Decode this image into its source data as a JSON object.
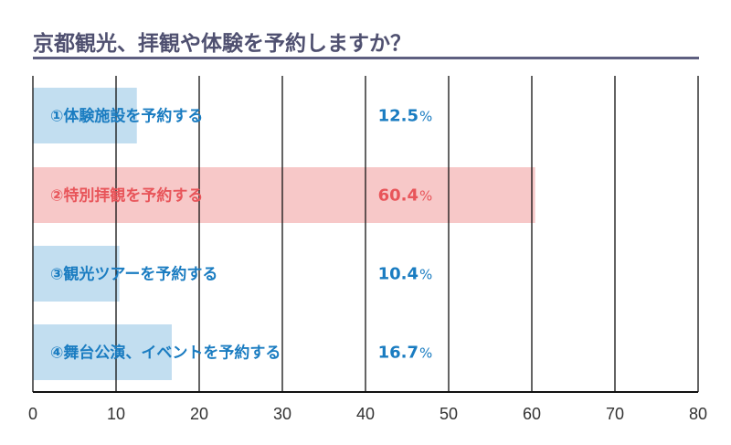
{
  "chart_data": {
    "type": "bar",
    "orientation": "horizontal",
    "title": "京都観光、拝観や体験を予約しますか？",
    "categories": [
      "①体験施設を予約する",
      "②特別拝観を予約する",
      "③観光ツアーを予約する",
      "④舞台公演、イベントを予約する"
    ],
    "values": [
      12.5,
      60.4,
      10.4,
      16.7
    ],
    "value_labels": [
      "12.5",
      "60.4",
      "10.4",
      "16.7"
    ],
    "unit": "%",
    "xlim": [
      0,
      80
    ],
    "xticks": [
      "0",
      "10",
      "20",
      "30",
      "40",
      "50",
      "60",
      "70",
      "80"
    ],
    "grid": true,
    "colors": {
      "default_bar": "#c2def0",
      "default_text": "#1a7cc1",
      "highlight_bar": "#f7c8c8",
      "highlight_text": "#e8555a",
      "title": "#4f5070"
    },
    "highlight_index": 1
  }
}
